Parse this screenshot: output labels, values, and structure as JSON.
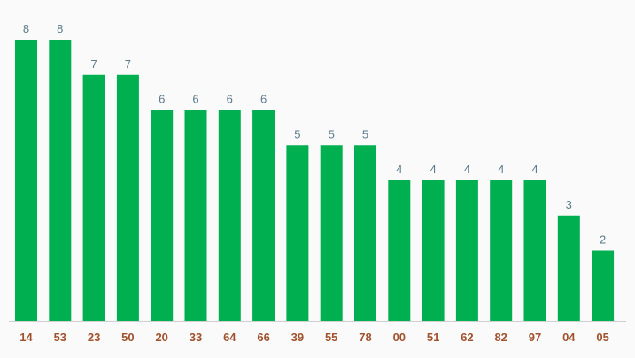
{
  "colors": {
    "background": "#fafafa",
    "bar": "#00b050",
    "value_label": "#5a7a8c",
    "category_label": "#a0522d",
    "baseline": "#d0d0d0"
  },
  "chart_data": {
    "type": "bar",
    "title": "",
    "xlabel": "",
    "ylabel": "",
    "ylim": [
      0,
      8
    ],
    "grid": false,
    "legend": "none",
    "categories": [
      "14",
      "53",
      "23",
      "50",
      "20",
      "33",
      "64",
      "66",
      "39",
      "55",
      "78",
      "00",
      "51",
      "62",
      "82",
      "97",
      "04",
      "05"
    ],
    "values": [
      8,
      8,
      7,
      7,
      6,
      6,
      6,
      6,
      5,
      5,
      5,
      4,
      4,
      4,
      4,
      4,
      3,
      2
    ],
    "value_labels": true
  }
}
